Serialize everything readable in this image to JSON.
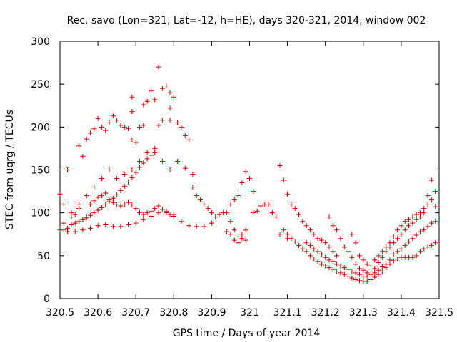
{
  "chart_data": {
    "type": "scatter",
    "title": "Rec. savo (Lon=321, Lat=-12, h=HE), days 320-321, 2014, window 002",
    "xlabel": "GPS time / Days of year 2014",
    "ylabel": "STEC from uqrg / TECUs",
    "xlim": [
      320.5,
      321.5
    ],
    "ylim": [
      0,
      300
    ],
    "x_ticks": [
      320.5,
      320.6,
      320.7,
      320.8,
      320.9,
      321.0,
      321.1,
      321.2,
      321.3,
      321.4,
      321.5
    ],
    "x_tick_labels": [
      "320.5",
      "320.6",
      "320.7",
      "320.8",
      "320.9",
      "321",
      "321.1",
      "321.2",
      "321.3",
      "321.4",
      "321.5"
    ],
    "y_ticks": [
      0,
      50,
      100,
      150,
      200,
      250,
      300
    ],
    "y_tick_labels": [
      "0",
      "50",
      "100",
      "150",
      "200",
      "250",
      "300"
    ],
    "grid": false,
    "legend": "none",
    "marker": "+",
    "color": "#cc0000",
    "series": [
      {
        "points": [
          [
            320.5,
            122
          ],
          [
            320.51,
            110
          ],
          [
            320.52,
            150
          ],
          [
            320.53,
            100
          ],
          [
            320.54,
            98
          ],
          [
            320.55,
            105
          ],
          [
            320.56,
            92
          ],
          [
            320.57,
            95
          ],
          [
            320.58,
            110
          ],
          [
            320.59,
            114
          ],
          [
            320.6,
            118
          ],
          [
            320.61,
            120
          ],
          [
            320.62,
            123
          ],
          [
            320.63,
            115
          ],
          [
            320.64,
            112
          ],
          [
            320.65,
            110
          ],
          [
            320.66,
            108
          ],
          [
            320.67,
            110
          ],
          [
            320.68,
            112
          ],
          [
            320.69,
            110
          ],
          [
            320.7,
            105
          ],
          [
            320.71,
            100
          ],
          [
            320.72,
            98
          ],
          [
            320.73,
            100
          ],
          [
            320.74,
            102
          ],
          [
            320.75,
            105
          ],
          [
            320.76,
            108
          ],
          [
            320.77,
            104
          ],
          [
            320.78,
            100
          ],
          [
            320.79,
            98
          ],
          [
            320.8,
            96
          ],
          [
            320.51,
            80
          ],
          [
            320.52,
            82
          ],
          [
            320.53,
            86
          ],
          [
            320.54,
            88
          ],
          [
            320.55,
            90
          ],
          [
            320.56,
            92
          ],
          [
            320.57,
            94
          ],
          [
            320.58,
            97
          ],
          [
            320.59,
            100
          ],
          [
            320.6,
            103
          ],
          [
            320.61,
            106
          ],
          [
            320.62,
            110
          ],
          [
            320.63,
            113
          ],
          [
            320.64,
            117
          ],
          [
            320.65,
            121
          ],
          [
            320.66,
            126
          ],
          [
            320.67,
            131
          ],
          [
            320.68,
            136
          ],
          [
            320.69,
            141
          ],
          [
            320.7,
            147
          ],
          [
            320.71,
            153
          ],
          [
            320.72,
            158
          ],
          [
            320.73,
            163
          ],
          [
            320.74,
            167
          ],
          [
            320.75,
            170
          ],
          [
            320.55,
            178
          ],
          [
            320.56,
            166
          ],
          [
            320.57,
            186
          ],
          [
            320.58,
            193
          ],
          [
            320.59,
            198
          ],
          [
            320.6,
            210
          ],
          [
            320.61,
            200
          ],
          [
            320.62,
            196
          ],
          [
            320.63,
            205
          ],
          [
            320.64,
            213
          ],
          [
            320.65,
            208
          ],
          [
            320.66,
            202
          ],
          [
            320.67,
            200
          ],
          [
            320.68,
            198
          ],
          [
            320.69,
            185
          ],
          [
            320.7,
            182
          ],
          [
            320.71,
            200
          ],
          [
            320.72,
            202
          ],
          [
            320.73,
            230
          ],
          [
            320.74,
            242
          ],
          [
            320.75,
            232
          ],
          [
            320.76,
            270
          ],
          [
            320.77,
            245
          ],
          [
            320.78,
            248
          ],
          [
            320.79,
            240
          ],
          [
            320.8,
            235
          ],
          [
            320.81,
            205
          ],
          [
            320.82,
            200
          ],
          [
            320.83,
            190
          ],
          [
            320.84,
            185
          ],
          [
            320.69,
            235
          ],
          [
            320.69,
            218
          ],
          [
            320.72,
            226
          ],
          [
            320.77,
            208
          ],
          [
            320.79,
            222
          ],
          [
            320.79,
            208
          ],
          [
            320.76,
            202
          ],
          [
            320.51,
            88
          ],
          [
            320.53,
            95
          ],
          [
            320.55,
            110
          ],
          [
            320.57,
            120
          ],
          [
            320.59,
            130
          ],
          [
            320.61,
            140
          ],
          [
            320.63,
            150
          ],
          [
            320.65,
            140
          ],
          [
            320.67,
            145
          ],
          [
            320.69,
            150
          ],
          [
            320.71,
            160
          ],
          [
            320.73,
            170
          ],
          [
            320.75,
            175
          ],
          [
            320.77,
            160
          ],
          [
            320.79,
            150
          ],
          [
            320.81,
            160
          ],
          [
            320.83,
            152
          ],
          [
            320.85,
            145
          ],
          [
            320.5,
            80
          ],
          [
            320.52,
            78
          ],
          [
            320.54,
            78
          ],
          [
            320.56,
            80
          ],
          [
            320.58,
            82
          ],
          [
            320.6,
            85
          ],
          [
            320.62,
            86
          ],
          [
            320.64,
            84
          ],
          [
            320.66,
            84
          ],
          [
            320.68,
            86
          ],
          [
            320.7,
            88
          ],
          [
            320.72,
            92
          ],
          [
            320.74,
            96
          ],
          [
            320.76,
            100
          ],
          [
            320.78,
            102
          ],
          [
            320.8,
            98
          ],
          [
            320.82,
            90
          ],
          [
            320.84,
            85
          ],
          [
            320.86,
            84
          ],
          [
            320.88,
            84
          ],
          [
            320.9,
            88
          ],
          [
            320.85,
            130
          ],
          [
            320.86,
            120
          ],
          [
            320.87,
            115
          ],
          [
            320.88,
            110
          ],
          [
            320.89,
            105
          ],
          [
            320.9,
            100
          ],
          [
            320.91,
            95
          ],
          [
            320.92,
            98
          ],
          [
            320.93,
            100
          ],
          [
            320.94,
            100
          ],
          [
            320.95,
            90
          ],
          [
            320.96,
            80
          ],
          [
            320.97,
            72
          ],
          [
            320.98,
            70
          ],
          [
            320.99,
            68
          ],
          [
            320.95,
            110
          ],
          [
            320.96,
            115
          ],
          [
            320.97,
            120
          ],
          [
            320.98,
            135
          ],
          [
            320.99,
            148
          ],
          [
            321.0,
            140
          ],
          [
            320.94,
            78
          ],
          [
            320.95,
            75
          ],
          [
            320.96,
            68
          ],
          [
            320.97,
            65
          ],
          [
            320.98,
            75
          ],
          [
            320.99,
            80
          ],
          [
            321.01,
            125
          ],
          [
            321.01,
            100
          ],
          [
            321.02,
            102
          ],
          [
            321.03,
            108
          ],
          [
            321.04,
            110
          ],
          [
            321.05,
            110
          ],
          [
            321.06,
            100
          ],
          [
            321.07,
            95
          ],
          [
            321.08,
            75
          ],
          [
            321.09,
            80
          ],
          [
            321.1,
            70
          ],
          [
            321.08,
            155
          ],
          [
            321.09,
            138
          ],
          [
            321.1,
            122
          ],
          [
            321.11,
            110
          ],
          [
            321.12,
            105
          ],
          [
            321.13,
            98
          ],
          [
            321.14,
            90
          ],
          [
            321.15,
            85
          ],
          [
            321.16,
            80
          ],
          [
            321.17,
            75
          ],
          [
            321.18,
            70
          ],
          [
            321.19,
            68
          ],
          [
            321.2,
            65
          ],
          [
            321.21,
            60
          ],
          [
            321.22,
            55
          ],
          [
            321.23,
            50
          ],
          [
            321.1,
            75
          ],
          [
            321.11,
            70
          ],
          [
            321.12,
            66
          ],
          [
            321.13,
            62
          ],
          [
            321.14,
            58
          ],
          [
            321.15,
            55
          ],
          [
            321.16,
            50
          ],
          [
            321.17,
            46
          ],
          [
            321.18,
            43
          ],
          [
            321.19,
            40
          ],
          [
            321.2,
            38
          ],
          [
            321.21,
            36
          ],
          [
            321.22,
            34
          ],
          [
            321.23,
            32
          ],
          [
            321.24,
            30
          ],
          [
            321.25,
            28
          ],
          [
            321.26,
            26
          ],
          [
            321.27,
            24
          ],
          [
            321.28,
            22
          ],
          [
            321.29,
            21
          ],
          [
            321.3,
            20
          ],
          [
            321.31,
            20
          ],
          [
            321.32,
            22
          ],
          [
            321.33,
            25
          ],
          [
            321.34,
            28
          ],
          [
            321.35,
            32
          ],
          [
            321.36,
            36
          ],
          [
            321.37,
            40
          ],
          [
            321.38,
            44
          ],
          [
            321.39,
            46
          ],
          [
            321.4,
            48
          ],
          [
            321.41,
            48
          ],
          [
            321.42,
            48
          ],
          [
            321.43,
            48
          ],
          [
            321.44,
            50
          ],
          [
            321.45,
            55
          ],
          [
            321.46,
            58
          ],
          [
            321.47,
            60
          ],
          [
            321.48,
            62
          ],
          [
            321.49,
            65
          ],
          [
            321.15,
            65
          ],
          [
            321.16,
            62
          ],
          [
            321.17,
            58
          ],
          [
            321.18,
            55
          ],
          [
            321.19,
            52
          ],
          [
            321.2,
            48
          ],
          [
            321.21,
            45
          ],
          [
            321.22,
            43
          ],
          [
            321.23,
            40
          ],
          [
            321.24,
            38
          ],
          [
            321.25,
            36
          ],
          [
            321.26,
            34
          ],
          [
            321.27,
            32
          ],
          [
            321.28,
            30
          ],
          [
            321.29,
            28
          ],
          [
            321.3,
            26
          ],
          [
            321.31,
            26
          ],
          [
            321.32,
            28
          ],
          [
            321.33,
            30
          ],
          [
            321.34,
            33
          ],
          [
            321.35,
            37
          ],
          [
            321.36,
            40
          ],
          [
            321.37,
            45
          ],
          [
            321.38,
            52
          ],
          [
            321.39,
            55
          ],
          [
            321.4,
            58
          ],
          [
            321.41,
            62
          ],
          [
            321.42,
            66
          ],
          [
            321.43,
            70
          ],
          [
            321.44,
            74
          ],
          [
            321.45,
            78
          ],
          [
            321.46,
            80
          ],
          [
            321.47,
            84
          ],
          [
            321.48,
            88
          ],
          [
            321.49,
            90
          ],
          [
            321.21,
            95
          ],
          [
            321.22,
            85
          ],
          [
            321.23,
            80
          ],
          [
            321.24,
            70
          ],
          [
            321.25,
            60
          ],
          [
            321.26,
            55
          ],
          [
            321.27,
            48
          ],
          [
            321.28,
            40
          ],
          [
            321.29,
            35
          ],
          [
            321.3,
            33
          ],
          [
            321.31,
            30
          ],
          [
            321.32,
            32
          ],
          [
            321.33,
            35
          ],
          [
            321.34,
            42
          ],
          [
            321.35,
            48
          ],
          [
            321.36,
            55
          ],
          [
            321.37,
            60
          ],
          [
            321.38,
            65
          ],
          [
            321.39,
            70
          ],
          [
            321.4,
            75
          ],
          [
            321.41,
            80
          ],
          [
            321.42,
            85
          ],
          [
            321.43,
            88
          ],
          [
            321.44,
            92
          ],
          [
            321.45,
            95
          ],
          [
            321.46,
            100
          ],
          [
            321.47,
            110
          ],
          [
            321.48,
            115
          ],
          [
            321.49,
            125
          ],
          [
            321.27,
            75
          ],
          [
            321.28,
            65
          ],
          [
            321.29,
            50
          ],
          [
            321.3,
            45
          ],
          [
            321.31,
            40
          ],
          [
            321.32,
            38
          ],
          [
            321.33,
            45
          ],
          [
            321.34,
            50
          ],
          [
            321.35,
            55
          ],
          [
            321.36,
            60
          ],
          [
            321.37,
            65
          ],
          [
            321.38,
            72
          ],
          [
            321.39,
            80
          ],
          [
            321.4,
            85
          ],
          [
            321.41,
            90
          ],
          [
            321.42,
            92
          ],
          [
            321.43,
            95
          ],
          [
            321.44,
            98
          ],
          [
            321.45,
            100
          ],
          [
            321.46,
            105
          ],
          [
            321.47,
            120
          ],
          [
            321.48,
            138
          ],
          [
            321.49,
            107
          ]
        ]
      }
    ]
  }
}
